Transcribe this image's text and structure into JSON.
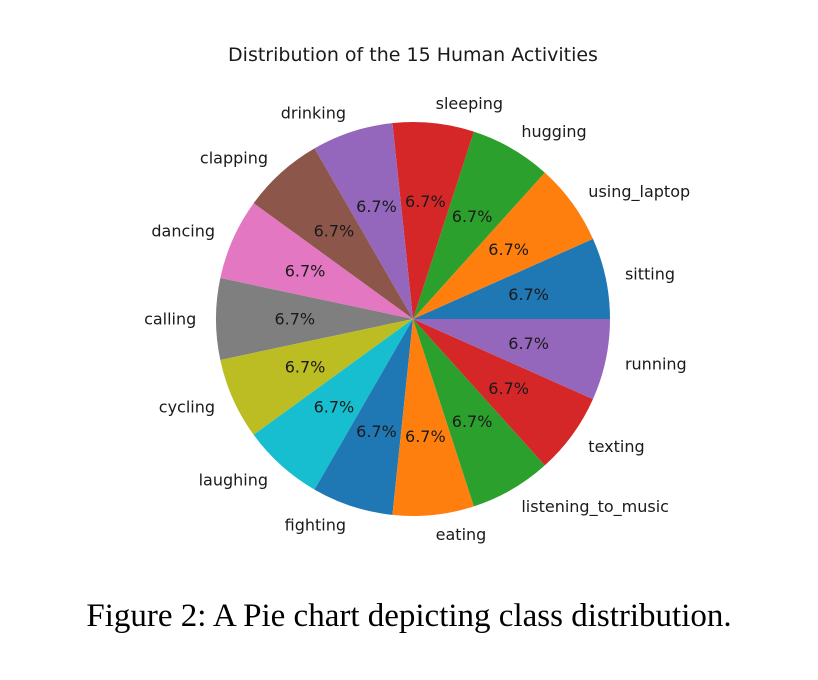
{
  "chart_data": {
    "type": "pie",
    "title": "Distribution of the 15 Human Activities",
    "categories": [
      "sitting",
      "using_laptop",
      "hugging",
      "sleeping",
      "drinking",
      "clapping",
      "dancing",
      "calling",
      "cycling",
      "laughing",
      "fighting",
      "eating",
      "listening_to_music",
      "texting",
      "running"
    ],
    "values": [
      6.7,
      6.7,
      6.7,
      6.7,
      6.7,
      6.7,
      6.7,
      6.7,
      6.7,
      6.7,
      6.7,
      6.7,
      6.7,
      6.7,
      6.7
    ],
    "value_labels": [
      "6.7%",
      "6.7%",
      "6.7%",
      "6.7%",
      "6.7%",
      "6.7%",
      "6.7%",
      "6.7%",
      "6.7%",
      "6.7%",
      "6.7%",
      "6.7%",
      "6.7%",
      "6.7%",
      "6.7%"
    ],
    "colors": [
      "#1f77b4",
      "#ff7f0e",
      "#2ca02c",
      "#d62728",
      "#9467bd",
      "#8c564b",
      "#e377c2",
      "#7f7f7f",
      "#bcbd22",
      "#17becf",
      "#1f77b4",
      "#ff7f0e",
      "#2ca02c",
      "#d62728",
      "#9467bd"
    ],
    "start_angle_deg": 0,
    "direction": "counterclockwise"
  },
  "caption": "Figure 2: A Pie chart depicting class distribution."
}
